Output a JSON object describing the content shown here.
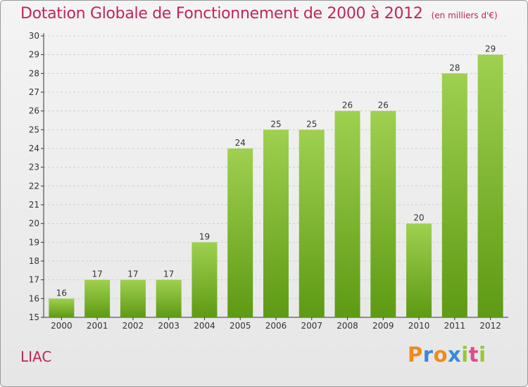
{
  "chart_data": {
    "type": "bar",
    "title": "Dotation Globale de Fonctionnement de 2000 à 2012",
    "unit_note": "(en milliers d'€)",
    "categories": [
      "2000",
      "2001",
      "2002",
      "2003",
      "2004",
      "2005",
      "2006",
      "2007",
      "2008",
      "2009",
      "2010",
      "2011",
      "2012"
    ],
    "values": [
      16,
      17,
      17,
      17,
      19,
      24,
      25,
      25,
      26,
      26,
      20,
      28,
      29
    ],
    "ylim": [
      15,
      30
    ],
    "yticks": [
      15,
      16,
      17,
      18,
      19,
      20,
      21,
      22,
      23,
      24,
      25,
      26,
      27,
      28,
      29,
      30
    ],
    "xlabel": "",
    "ylabel": "",
    "grid": true,
    "bar_color_top": "#9fd04f",
    "bar_color_bottom": "#5e9a14",
    "data_labels": true
  },
  "footer": {
    "commune": "LIAC",
    "logo_letters": [
      "P",
      "r",
      "o",
      "x",
      "i",
      "t",
      "i"
    ],
    "logo_colors": [
      "#f08a1c",
      "#3a8ad8",
      "#f08a1c",
      "#3a8ad8",
      "#9ac43c",
      "#e04a8a",
      "#9ac43c"
    ]
  },
  "colors": {
    "title": "#c0255a",
    "axis": "#333333",
    "grid": "#d0d0d0"
  }
}
